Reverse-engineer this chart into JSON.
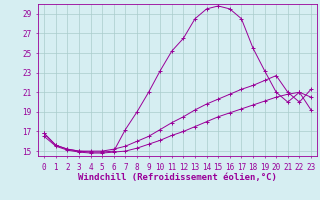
{
  "xlabel": "Windchill (Refroidissement éolien,°C)",
  "ylabel": "",
  "bg_color": "#d6eef2",
  "grid_color": "#aacccc",
  "line_color": "#990099",
  "xlim": [
    -0.5,
    23.5
  ],
  "ylim": [
    14.5,
    30.0
  ],
  "yticks": [
    15,
    17,
    19,
    21,
    23,
    25,
    27,
    29
  ],
  "xticks": [
    0,
    1,
    2,
    3,
    4,
    5,
    6,
    7,
    8,
    9,
    10,
    11,
    12,
    13,
    14,
    15,
    16,
    17,
    18,
    19,
    20,
    21,
    22,
    23
  ],
  "line1_x": [
    0,
    1,
    2,
    3,
    4,
    5,
    6,
    7,
    8,
    9,
    10,
    11,
    12,
    13,
    14,
    15,
    16,
    17,
    18,
    19,
    20,
    21,
    22,
    23
  ],
  "line1_y": [
    16.8,
    15.6,
    15.2,
    15.0,
    14.9,
    14.9,
    15.0,
    17.2,
    19.0,
    21.0,
    23.2,
    25.2,
    26.5,
    28.5,
    29.5,
    29.8,
    29.5,
    28.5,
    25.5,
    23.2,
    21.0,
    20.0,
    21.0,
    20.5
  ],
  "line2_x": [
    0,
    1,
    2,
    3,
    4,
    5,
    6,
    7,
    8,
    9,
    10,
    11,
    12,
    13,
    14,
    15,
    16,
    17,
    18,
    19,
    20,
    21,
    22,
    23
  ],
  "line2_y": [
    16.8,
    15.6,
    15.2,
    15.0,
    15.0,
    15.0,
    15.2,
    15.5,
    16.0,
    16.5,
    17.2,
    17.9,
    18.5,
    19.2,
    19.8,
    20.3,
    20.8,
    21.3,
    21.7,
    22.2,
    22.7,
    21.0,
    20.0,
    21.3
  ],
  "line3_x": [
    0,
    1,
    2,
    3,
    4,
    5,
    6,
    7,
    8,
    9,
    10,
    11,
    12,
    13,
    14,
    15,
    16,
    17,
    18,
    19,
    20,
    21,
    22,
    23
  ],
  "line3_y": [
    16.5,
    15.5,
    15.1,
    14.9,
    14.8,
    14.8,
    14.9,
    15.0,
    15.3,
    15.7,
    16.1,
    16.6,
    17.0,
    17.5,
    18.0,
    18.5,
    18.9,
    19.3,
    19.7,
    20.1,
    20.5,
    20.8,
    21.0,
    19.2
  ],
  "font_name": "monospace",
  "tick_fontsize": 5.5,
  "xlabel_fontsize": 6.5
}
